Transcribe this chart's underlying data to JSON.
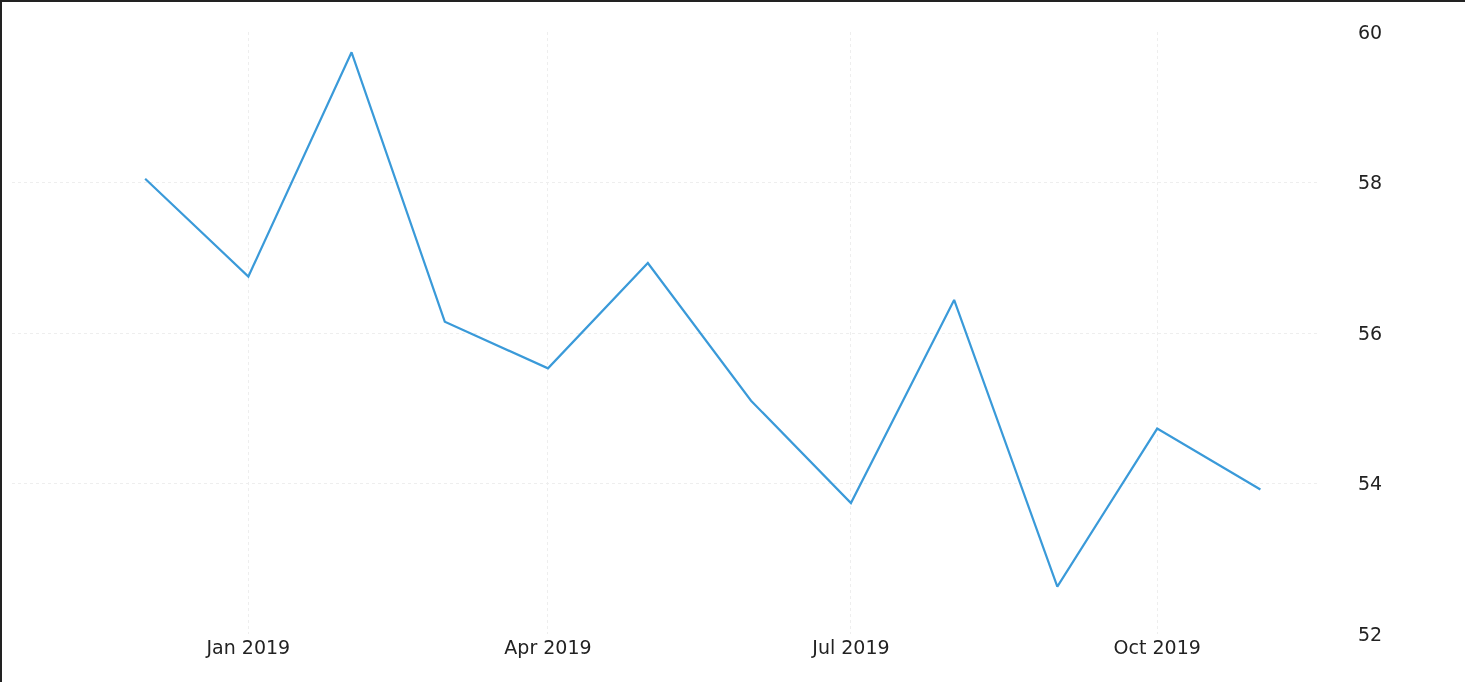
{
  "chart_data": {
    "type": "line",
    "x": [
      "2018-12",
      "2019-01",
      "2019-02",
      "2019-03",
      "2019-04",
      "2019-05",
      "2019-06",
      "2019-07",
      "2019-08",
      "2019-09",
      "2019-10",
      "2019-11"
    ],
    "series": [
      {
        "color": "#3a9ad9",
        "values": [
          58.05,
          56.75,
          59.73,
          56.15,
          55.53,
          56.93,
          55.1,
          53.74,
          56.44,
          52.63,
          54.73,
          53.92
        ]
      }
    ],
    "xlim": [
      "2018-10-22",
      "2019-11-18"
    ],
    "xticks": [
      {
        "value": "2019-01",
        "label": "Jan 2019"
      },
      {
        "value": "2019-04",
        "label": "Apr 2019"
      },
      {
        "value": "2019-07",
        "label": "Jul 2019"
      },
      {
        "value": "2019-10",
        "label": "Oct 2019"
      }
    ],
    "ylim": [
      52,
      60
    ],
    "yticks": [
      52,
      54,
      56,
      58,
      60
    ],
    "grid": true,
    "legend": false,
    "marker": "none",
    "line_style": "solid"
  }
}
